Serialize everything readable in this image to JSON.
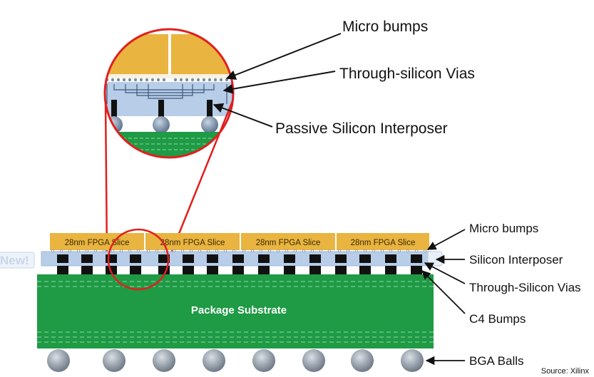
{
  "zoom_labels": {
    "micro_bumps": "Micro bumps",
    "through_silicon_vias": "Through-silicon Vias",
    "passive_interposer": "Passive Silicon Interposer"
  },
  "stack": {
    "new_badge": "New!",
    "fpga_slices": [
      "28nm FPGA Slice",
      "28nm FPGA Slice",
      "28nm FPGA Slice",
      "28nm FPGA Slice"
    ],
    "substrate_label": "Package Substrate"
  },
  "right_labels": {
    "micro_bumps": "Micro bumps",
    "silicon_interposer": "Silicon Interposer",
    "through_silicon_vias": "Through-Silicon Vias",
    "c4_bumps": "C4 Bumps",
    "bga_balls": "BGA Balls"
  },
  "source": "Source: Xilinx",
  "colors": {
    "fpga_gold": "#e9b440",
    "interposer_blue": "#b7cde8",
    "substrate_green": "#1f9a45",
    "callout_red": "#e0201e",
    "bump_black": "#111111",
    "ball_grey": "#9ea8b4"
  }
}
